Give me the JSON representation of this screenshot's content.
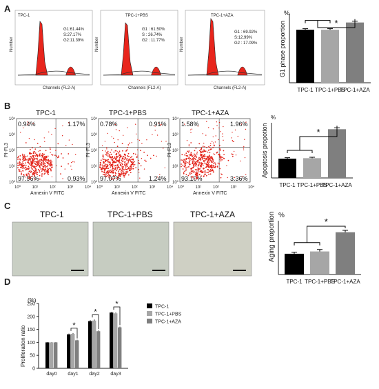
{
  "panels": {
    "a": "A",
    "b": "B",
    "c": "C",
    "d": "D"
  },
  "chart_data": [
    {
      "type": "histogram",
      "panel": "A",
      "plots": [
        {
          "label": "TPC-1",
          "stats": [
            "G1:61.44%",
            "S:27.17%",
            "G2:11.39%"
          ],
          "x_label": "Channels (FL2-A)",
          "y_label": "Number"
        },
        {
          "label": "TPC-1+PBS",
          "stats": [
            "G1 : 61.50%",
            "S : 26.74%",
            "G2 : 11.77%"
          ],
          "x_label": "Channels (FL2-A)",
          "y_label": "Number"
        },
        {
          "label": "TPC-1+AZA",
          "stats": [
            "G1 : 69.92%",
            "S:12.99%",
            "G2 : 17.09%"
          ],
          "x_label": "Channels (FL2-A)",
          "y_label": "Number"
        }
      ]
    },
    {
      "type": "bar",
      "panel": "A",
      "categories": [
        "TPC-1",
        "TPC-1+PBS",
        "TPC-1+AZA"
      ],
      "values": [
        61.5,
        61.5,
        69.9
      ],
      "errors": [
        1.2,
        1.2,
        1.5
      ],
      "colors": [
        "#000000",
        "#a6a6a6",
        "#7f7f7f"
      ],
      "ylabel": "G1 phase proportion",
      "unit": "%",
      "ylim": [
        0,
        80
      ],
      "significance": "*"
    },
    {
      "type": "scatter",
      "panel": "B",
      "plots": [
        {
          "label": "TPC-1",
          "quadrants": {
            "ul": "0.94%",
            "ur": "1.17%",
            "ll": "97.96%",
            "lr": "0.93%"
          }
        },
        {
          "label": "TPC-1+PBS",
          "quadrants": {
            "ul": "0.78%",
            "ur": "0.91%",
            "ll": "97.07%",
            "lr": "1.24%"
          }
        },
        {
          "label": "TPC-1+AZA",
          "quadrants": {
            "ul": "1.58%",
            "ur": "1.96%",
            "ll": "93.10%",
            "lr": "3.36%"
          }
        }
      ],
      "x_label": "Annexin V FITC",
      "y_label": "PI-FL3",
      "y_label_alt": "PI-FL3",
      "ticks": [
        "10⁰",
        "10¹",
        "10²",
        "10³",
        "10⁴"
      ]
    },
    {
      "type": "bar",
      "panel": "B",
      "categories": [
        "TPC-1",
        "TPC-1+PBS",
        "TPC-1+AZA"
      ],
      "values": [
        2.1,
        2.15,
        5.3
      ],
      "errors": [
        0.1,
        0.1,
        0.15
      ],
      "colors": [
        "#000000",
        "#a6a6a6",
        "#7f7f7f"
      ],
      "ylabel": "Apoptosis propotion",
      "unit": "%",
      "ylim": [
        0,
        6
      ],
      "significance": "*"
    },
    {
      "type": "bar",
      "panel": "C",
      "images": [
        "TPC-1",
        "TPC-1+PBS",
        "TPC-1+AZA"
      ],
      "categories": [
        "TPC-1",
        "TPC-1+PBS",
        "TPC-1+AZA"
      ],
      "values": [
        27,
        30,
        55
      ],
      "errors": [
        2,
        2.5,
        2.5
      ],
      "colors": [
        "#000000",
        "#a6a6a6",
        "#7f7f7f"
      ],
      "ylabel": "Aging proportion",
      "unit": "%",
      "ylim": [
        0,
        70
      ],
      "significance": "*"
    },
    {
      "type": "bar",
      "panel": "D",
      "categories": [
        "day0",
        "day1",
        "day2",
        "day3"
      ],
      "series": [
        {
          "name": "TPC-1",
          "values": [
            100,
            131,
            182,
            215
          ],
          "errors": [
            1,
            3,
            4,
            3
          ],
          "color": "#000000"
        },
        {
          "name": "TPC-1+PBS",
          "values": [
            100,
            133,
            184,
            212
          ],
          "errors": [
            1,
            3,
            4,
            3
          ],
          "color": "#a6a6a6"
        },
        {
          "name": "TPC-1+AZA",
          "values": [
            100,
            108,
            143,
            158
          ],
          "errors": [
            1,
            2,
            3,
            3
          ],
          "color": "#7f7f7f"
        }
      ],
      "ylabel": "Proliferation ratio",
      "unit": "(%)",
      "ylim": [
        0,
        250
      ],
      "yticks": [
        "0",
        "50",
        "100",
        "150",
        "200",
        "250"
      ],
      "significance": "*"
    }
  ]
}
